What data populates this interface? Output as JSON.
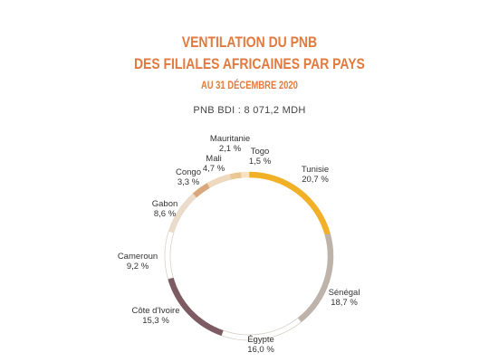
{
  "title_line1": "VENTILATION DU PNB",
  "title_line2": "DES FILIALES AFRICAINES PAR PAYS",
  "title_line3": "AU 31 DÉCEMBRE 2020",
  "subtitle": "PNB BDI : 8 071,2 MDH",
  "chart_data": {
    "type": "pie",
    "donut": true,
    "title": "VENTILATION DU PNB DES FILIALES AFRICAINES PAR PAYS",
    "subtitle": "AU 31 DÉCEMBRE 2020 — PNB BDI : 8 071,2 MDH",
    "slices": [
      {
        "label": "Tunisie",
        "value": 20.7,
        "text": "20,7 %",
        "color": "#F2B027"
      },
      {
        "label": "Sénégal",
        "value": 18.7,
        "text": "18,7 %",
        "color": "#BDB3AA"
      },
      {
        "label": "Égypte",
        "value": 16.0,
        "text": "16,0 %",
        "color": "#FFFFFF"
      },
      {
        "label": "Côte d'Ivoire",
        "value": 15.3,
        "text": "15,3 %",
        "color": "#7C5C62"
      },
      {
        "label": "Cameroun",
        "value": 9.2,
        "text": "9,2 %",
        "color": "#FFFFFF"
      },
      {
        "label": "Gabon",
        "value": 8.6,
        "text": "8,6 %",
        "color": "#EADBCB"
      },
      {
        "label": "Congo",
        "value": 3.3,
        "text": "3,3 %",
        "color": "#D9A77A"
      },
      {
        "label": "Mali",
        "value": 4.7,
        "text": "4,7 %",
        "color": "#EED8BE"
      },
      {
        "label": "Mauritanie",
        "value": 2.1,
        "text": "2,1 %",
        "color": "#E9C894"
      },
      {
        "label": "Togo",
        "value": 1.5,
        "text": "1,5 %",
        "color": "#F7E3C2"
      }
    ]
  }
}
